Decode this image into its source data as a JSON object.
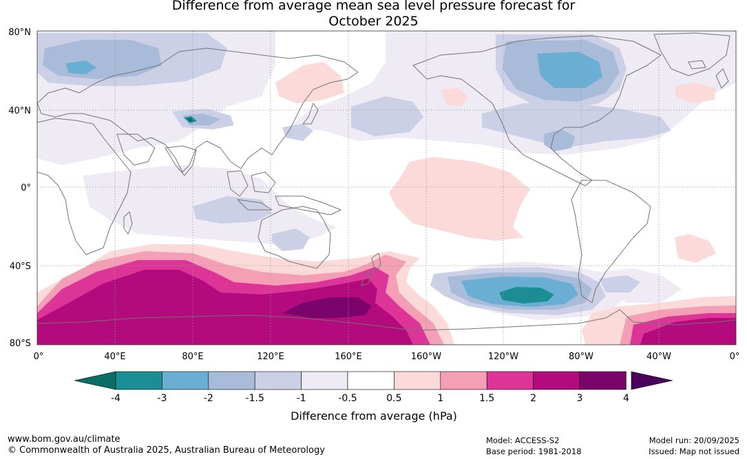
{
  "title": {
    "line1": "Difference from average mean sea level pressure forecast for",
    "line2": "October 2025"
  },
  "map": {
    "lat_labels": [
      "80°N",
      "40°N",
      "0°",
      "40°S",
      "80°S"
    ],
    "lon_labels": [
      "0°",
      "40°E",
      "80°E",
      "120°E",
      "160°E",
      "160°W",
      "120°W",
      "80°W",
      "40°W",
      "0°"
    ],
    "longitude_range": [
      0,
      360
    ],
    "latitude_range": [
      -80,
      80
    ],
    "grid": "dotted, every 40 degrees",
    "anomaly_regions": [
      {
        "name": "Southern Ocean (Indian sector)",
        "range": "2 to 3 hPa"
      },
      {
        "name": "Southern Ocean south of Australia",
        "range": "3 to 4 hPa"
      },
      {
        "name": "South Pacific west of South America",
        "range": "-4 to -3 hPa"
      },
      {
        "name": "Northern Canada",
        "range": "-3 to -2 hPa"
      },
      {
        "name": "Scandinavia",
        "range": "-2 to -1.5 hPa"
      },
      {
        "name": "Central Asia (small cell)",
        "range": "below -4 hPa"
      },
      {
        "name": "Central Pacific",
        "range": "0.5 to 1 hPa"
      },
      {
        "name": "Amundsen–Bellingshausen Sea",
        "range": "0.5 to 1 hPa"
      },
      {
        "name": "South Atlantic / Weddell Sea",
        "range": "2 to 3 hPa"
      }
    ]
  },
  "colorbar": {
    "colors": [
      "#0a6e68",
      "#1a8e94",
      "#6aaed4",
      "#a8bcda",
      "#ccd0e6",
      "#eeebf4",
      "#ffffff",
      "#fcdada",
      "#f59fb6",
      "#dc3597",
      "#b30a7e",
      "#7a046c",
      "#4a005a"
    ],
    "labels": [
      "-4",
      "-3",
      "-2",
      "-1.5",
      "-1",
      "-0.5",
      "0.5",
      "1",
      "1.5",
      "2",
      "3",
      "4"
    ],
    "title": "Difference from average (hPa)"
  },
  "colors": {
    "land_outline": "#737373",
    "grid": "#999999"
  },
  "footer": {
    "website": "www.bom.gov.au/climate",
    "copyright": "© Commonwealth of Australia 2025, Australian Bureau of Meteorology",
    "model": "Model: ACCESS-S2",
    "base_period": "Base period: 1981-2018",
    "model_run": "Model run: 20/09/2025",
    "issued": "Issued: Map not issued"
  }
}
